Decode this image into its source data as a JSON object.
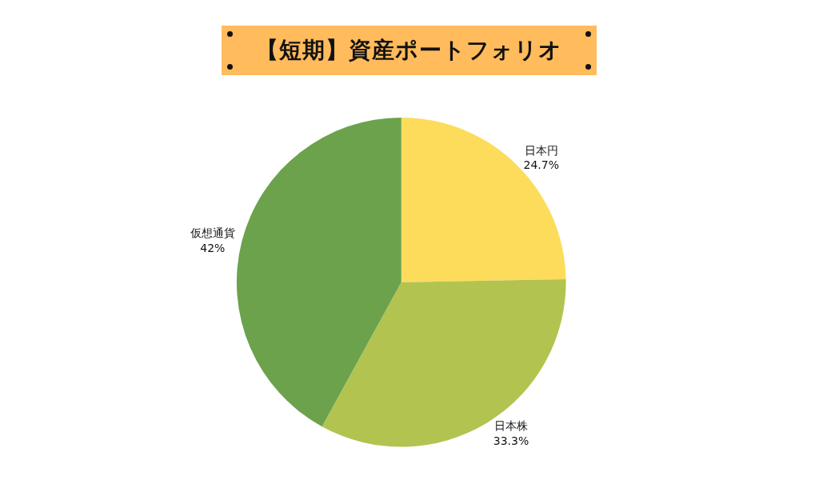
{
  "chart_data": {
    "type": "pie",
    "title": "【短期】資産ポートフォリオ",
    "categories": [
      "日本円",
      "日本株",
      "仮想通貨"
    ],
    "values": [
      24.7,
      33.3,
      42
    ],
    "value_labels": [
      "24.7%",
      "33.3%",
      "42%"
    ],
    "colors": [
      "#fddc5c",
      "#b3c350",
      "#6ba24b"
    ],
    "legend": false
  }
}
